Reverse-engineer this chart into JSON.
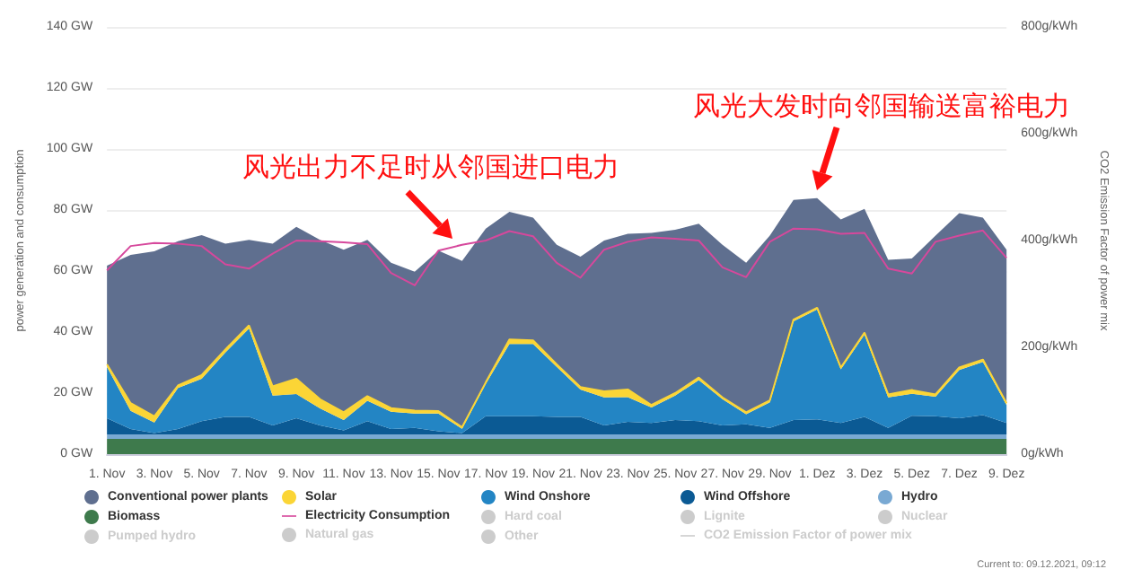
{
  "chart_data": {
    "type": "area",
    "stacked": true,
    "categories": [
      "1. Nov",
      null,
      "3. Nov",
      null,
      "5. Nov",
      null,
      "7. Nov",
      null,
      "9. Nov",
      null,
      "11. Nov",
      null,
      "13. Nov",
      null,
      "15. Nov",
      null,
      "17. Nov",
      null,
      "19. Nov",
      null,
      "21. Nov",
      null,
      "23. Nov",
      null,
      "25. Nov",
      null,
      "27. Nov",
      null,
      "29. Nov",
      null,
      "1. Dez",
      null,
      "3. Dez",
      null,
      "5. Dez",
      null,
      "7. Dez",
      null,
      "9. Dez"
    ],
    "ylabel": "power generation and consumption",
    "y2label": "CO2 Emission Factor of power mix",
    "ylim": [
      0,
      140
    ],
    "yticks": [
      {
        "value": 0,
        "label": "0 GW"
      },
      {
        "value": 20,
        "label": "20 GW"
      },
      {
        "value": 40,
        "label": "40 GW"
      },
      {
        "value": 60,
        "label": "60 GW"
      },
      {
        "value": 80,
        "label": "80 GW"
      },
      {
        "value": 100,
        "label": "100 GW"
      },
      {
        "value": 120,
        "label": "120 GW"
      },
      {
        "value": 140,
        "label": "140 GW"
      }
    ],
    "y2lim": [
      0,
      800
    ],
    "y2ticks": [
      {
        "value": 0,
        "label": "0g/kWh"
      },
      {
        "value": 200,
        "label": "200g/kWh"
      },
      {
        "value": 400,
        "label": "400g/kWh"
      },
      {
        "value": 600,
        "label": "600g/kWh"
      },
      {
        "value": 800,
        "label": "800g/kWh"
      }
    ],
    "grid": "y",
    "legend": "bottom",
    "marker": "none",
    "annotations": [
      "风光出力不足时从邻国进口电力",
      "风光大发时向邻国输送富裕电力",
      "Current to: 09.12.2021, 09:12"
    ],
    "series": [
      {
        "name": "Biomass",
        "color": "#3e7a4c",
        "values": [
          5,
          5,
          5,
          5,
          5,
          5,
          5,
          5,
          5,
          5,
          5,
          5,
          5,
          5,
          5,
          5,
          5,
          5,
          5,
          5,
          5,
          5,
          5,
          5,
          5,
          5,
          5,
          5,
          5,
          5,
          5,
          5,
          5,
          5,
          5,
          5,
          5,
          5,
          5
        ]
      },
      {
        "name": "Hydro",
        "color": "#79a9d3",
        "values": [
          1.5,
          1.5,
          1.5,
          1.5,
          1.5,
          1.5,
          1.5,
          1.5,
          1.5,
          1.5,
          1.5,
          1.5,
          1.5,
          1.5,
          1.5,
          1.5,
          1.5,
          1.5,
          1.5,
          1.5,
          1.5,
          1.5,
          1.5,
          1.5,
          1.5,
          1.5,
          1.5,
          1.5,
          1.5,
          1.5,
          1.5,
          1.5,
          1.5,
          1.5,
          1.5,
          1.5,
          1.5,
          1.5,
          1.5
        ]
      },
      {
        "name": "Wind Offshore",
        "color": "#0b5a94",
        "values": [
          5.3,
          1.7,
          0.4,
          1.7,
          4.3,
          5.7,
          5.7,
          2.9,
          5.3,
          2.9,
          1.3,
          4.3,
          1.7,
          2.1,
          1,
          0.4,
          5.9,
          5.9,
          5.9,
          5.7,
          5.7,
          2.9,
          4.1,
          3.7,
          4.7,
          4.3,
          2.9,
          3.3,
          2.1,
          4.7,
          4.9,
          3.7,
          5.7,
          2.1,
          6.1,
          5.9,
          5.3,
          6.3,
          3.7
        ]
      },
      {
        "name": "Wind Onshore",
        "color": "#2385c4",
        "values": [
          16.8,
          6,
          3.5,
          13.5,
          13.9,
          21.1,
          29,
          9.8,
          7.9,
          5.6,
          3.4,
          6.7,
          5.7,
          4.7,
          5.8,
          1.4,
          10.6,
          23.7,
          23.7,
          16.4,
          9,
          9.2,
          8.1,
          5.1,
          8,
          13.5,
          8.6,
          3.3,
          8.4,
          32.3,
          36,
          17.6,
          27,
          10,
          7.2,
          6.4,
          15.8,
          17.4,
          5.9
        ]
      },
      {
        "name": "Solar",
        "color": "#fbd536",
        "values": [
          0.8,
          2.5,
          2,
          0.8,
          1.2,
          1,
          1,
          3,
          5,
          3,
          2.5,
          1.5,
          1.2,
          1,
          0.8,
          0.5,
          0.5,
          1.5,
          1.2,
          0.8,
          0.8,
          2,
          2.5,
          0.8,
          0.8,
          0.8,
          0.6,
          0.6,
          0.6,
          0.6,
          0.6,
          0.6,
          0.6,
          1,
          1.2,
          0.8,
          0.8,
          0.8,
          0.6
        ]
      },
      {
        "name": "Conventional power plants",
        "color": "#5f6f8f",
        "values": [
          32.4,
          48.6,
          54.1,
          47.3,
          45.9,
          34.7,
          28,
          46.8,
          49.8,
          52.2,
          53.3,
          51.2,
          47.6,
          45.5,
          52.6,
          54.5,
          50.4,
          41.8,
          40.2,
          39.2,
          42.7,
          49.4,
          51,
          56.4,
          53.5,
          50.4,
          50,
          49,
          54,
          39.2,
          35.9,
          48.5,
          40.6,
          44.1,
          43.1,
          52,
          50.6,
          46.5,
          50.3
        ]
      },
      {
        "name": "Electricity Consumption",
        "type": "line",
        "color": "#d6489c",
        "values": [
          60.2,
          68.2,
          69.2,
          69,
          68.2,
          62.2,
          60.8,
          65.7,
          70,
          69.8,
          69.4,
          68.8,
          59.4,
          55.3,
          66.7,
          68.6,
          70,
          73.1,
          71.4,
          62.7,
          57.8,
          67,
          69.6,
          71,
          70.6,
          70,
          61.2,
          58,
          69.6,
          73.9,
          73.7,
          72.2,
          72.5,
          60.8,
          59.2,
          69.6,
          71.6,
          73.3,
          64.3
        ]
      },
      {
        "name": "Hard coal",
        "color": "#cccccc",
        "values": [
          null,
          null,
          null,
          null,
          null,
          null,
          null,
          null,
          null,
          null,
          null,
          null,
          null,
          null,
          null,
          null,
          null,
          null,
          null,
          null,
          null,
          null,
          null,
          null,
          null,
          null,
          null,
          null,
          null,
          null,
          null,
          null,
          null,
          null,
          null,
          null,
          null,
          null,
          null
        ]
      },
      {
        "name": "Lignite",
        "color": "#cccccc",
        "values": [
          null,
          null,
          null,
          null,
          null,
          null,
          null,
          null,
          null,
          null,
          null,
          null,
          null,
          null,
          null,
          null,
          null,
          null,
          null,
          null,
          null,
          null,
          null,
          null,
          null,
          null,
          null,
          null,
          null,
          null,
          null,
          null,
          null,
          null,
          null,
          null,
          null,
          null,
          null
        ]
      },
      {
        "name": "Nuclear",
        "color": "#cccccc",
        "values": [
          null,
          null,
          null,
          null,
          null,
          null,
          null,
          null,
          null,
          null,
          null,
          null,
          null,
          null,
          null,
          null,
          null,
          null,
          null,
          null,
          null,
          null,
          null,
          null,
          null,
          null,
          null,
          null,
          null,
          null,
          null,
          null,
          null,
          null,
          null,
          null,
          null,
          null,
          null
        ]
      },
      {
        "name": "Pumped hydro",
        "color": "#cccccc",
        "values": [
          null,
          null,
          null,
          null,
          null,
          null,
          null,
          null,
          null,
          null,
          null,
          null,
          null,
          null,
          null,
          null,
          null,
          null,
          null,
          null,
          null,
          null,
          null,
          null,
          null,
          null,
          null,
          null,
          null,
          null,
          null,
          null,
          null,
          null,
          null,
          null,
          null,
          null,
          null
        ]
      },
      {
        "name": "Natural gas",
        "color": "#cccccc",
        "values": [
          null,
          null,
          null,
          null,
          null,
          null,
          null,
          null,
          null,
          null,
          null,
          null,
          null,
          null,
          null,
          null,
          null,
          null,
          null,
          null,
          null,
          null,
          null,
          null,
          null,
          null,
          null,
          null,
          null,
          null,
          null,
          null,
          null,
          null,
          null,
          null,
          null,
          null,
          null
        ]
      },
      {
        "name": "Other",
        "color": "#cccccc",
        "values": [
          null,
          null,
          null,
          null,
          null,
          null,
          null,
          null,
          null,
          null,
          null,
          null,
          null,
          null,
          null,
          null,
          null,
          null,
          null,
          null,
          null,
          null,
          null,
          null,
          null,
          null,
          null,
          null,
          null,
          null,
          null,
          null,
          null,
          null,
          null,
          null,
          null,
          null,
          null
        ]
      },
      {
        "name": "CO2 Emission Factor of power mix",
        "type": "line",
        "color": "#cccccc",
        "values": [
          null,
          null,
          null,
          null,
          null,
          null,
          null,
          null,
          null,
          null,
          null,
          null,
          null,
          null,
          null,
          null,
          null,
          null,
          null,
          null,
          null,
          null,
          null,
          null,
          null,
          null,
          null,
          null,
          null,
          null,
          null,
          null,
          null,
          null,
          null,
          null,
          null,
          null,
          null
        ]
      }
    ]
  }
}
